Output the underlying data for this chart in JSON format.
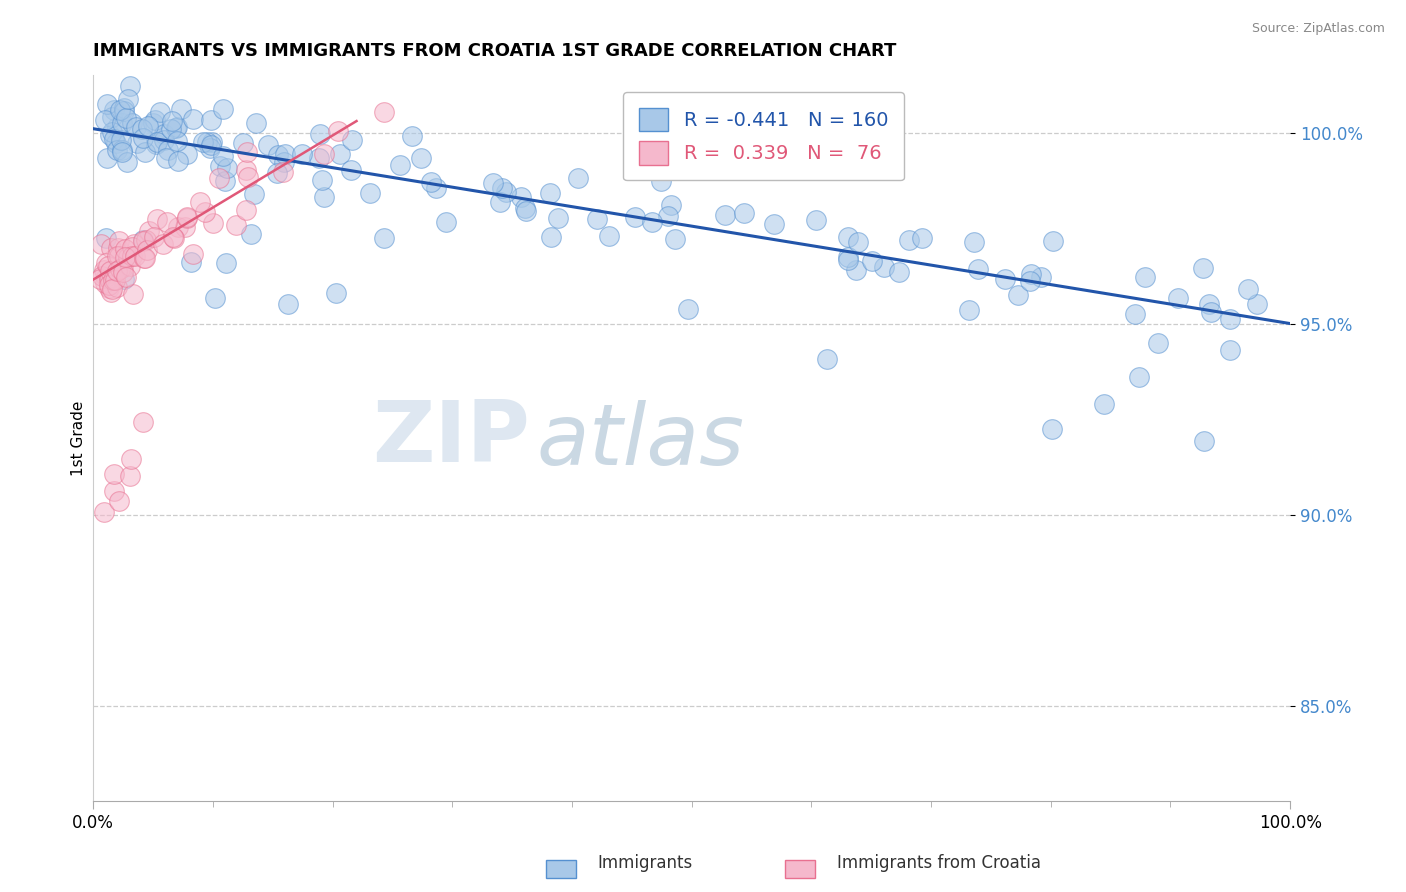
{
  "title": "IMMIGRANTS VS IMMIGRANTS FROM CROATIA 1ST GRADE CORRELATION CHART",
  "source": "Source: ZipAtlas.com",
  "ylabel": "1st Grade",
  "xlim": [
    0.0,
    1.0
  ],
  "ylim": [
    0.825,
    1.015
  ],
  "yticks": [
    0.85,
    0.9,
    0.95,
    1.0
  ],
  "ytick_labels": [
    "85.0%",
    "90.0%",
    "95.0%",
    "100.0%"
  ],
  "xtick_labels": [
    "0.0%",
    "100.0%"
  ],
  "legend_r_blue": "-0.441",
  "legend_n_blue": "160",
  "legend_r_pink": "0.339",
  "legend_n_pink": "76",
  "blue_color": "#a8c8e8",
  "blue_edge_color": "#5590d0",
  "blue_line_color": "#2255aa",
  "pink_color": "#f5b8cc",
  "pink_edge_color": "#e87090",
  "pink_line_color": "#e05878",
  "watermark_zip": "ZIP",
  "watermark_atlas": "atlas",
  "blue_line_x0": 0.0,
  "blue_line_x1": 1.0,
  "blue_line_y0": 1.001,
  "blue_line_y1": 0.95,
  "pink_line_x0": 0.0,
  "pink_line_x1": 0.22,
  "pink_line_y0": 0.9615,
  "pink_line_y1": 1.003
}
